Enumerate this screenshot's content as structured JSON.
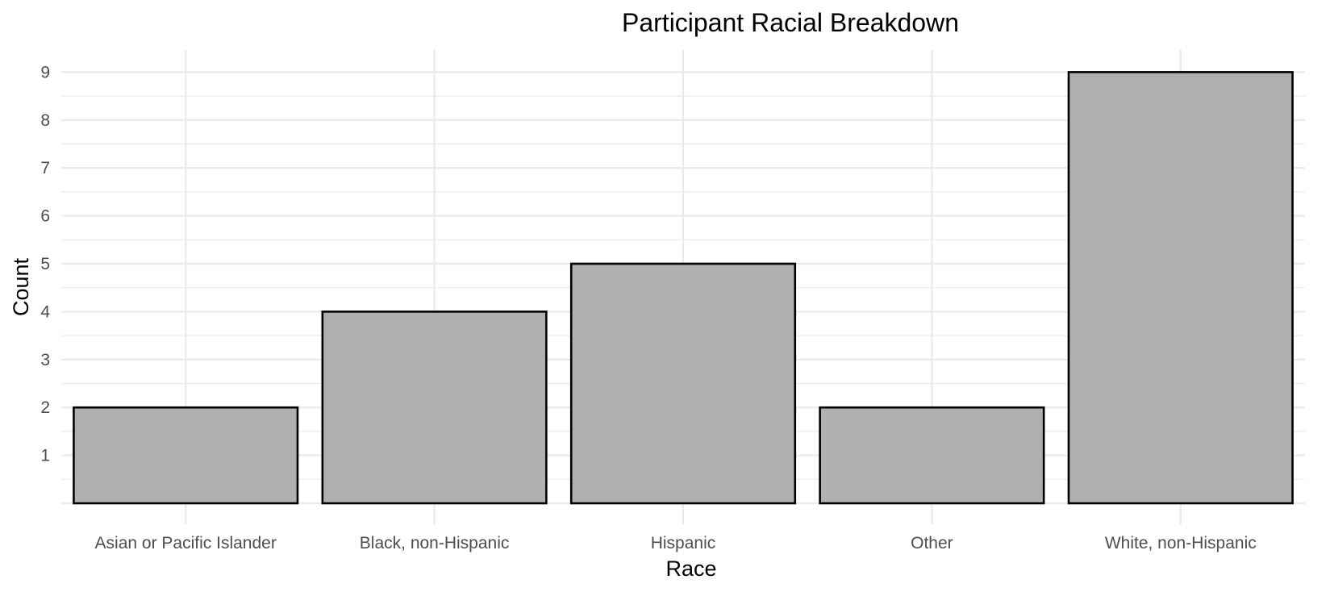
{
  "chart_data": {
    "type": "bar",
    "title": "Participant Racial Breakdown",
    "xlabel": "Race",
    "ylabel": "Count",
    "categories": [
      "Asian or Pacific Islander",
      "Black, non-Hispanic",
      "Hispanic",
      "Other",
      "White, non-Hispanic"
    ],
    "values": [
      2,
      4,
      5,
      2,
      9
    ],
    "ylim": [
      0,
      9.45
    ],
    "yticks": [
      1,
      2,
      3,
      4,
      5,
      6,
      7,
      8,
      9
    ],
    "grid": true,
    "legend": "none",
    "bar_color": "#b0b0b0",
    "bar_outline_color": "#000000",
    "gridline_color": "#ebebeb"
  }
}
